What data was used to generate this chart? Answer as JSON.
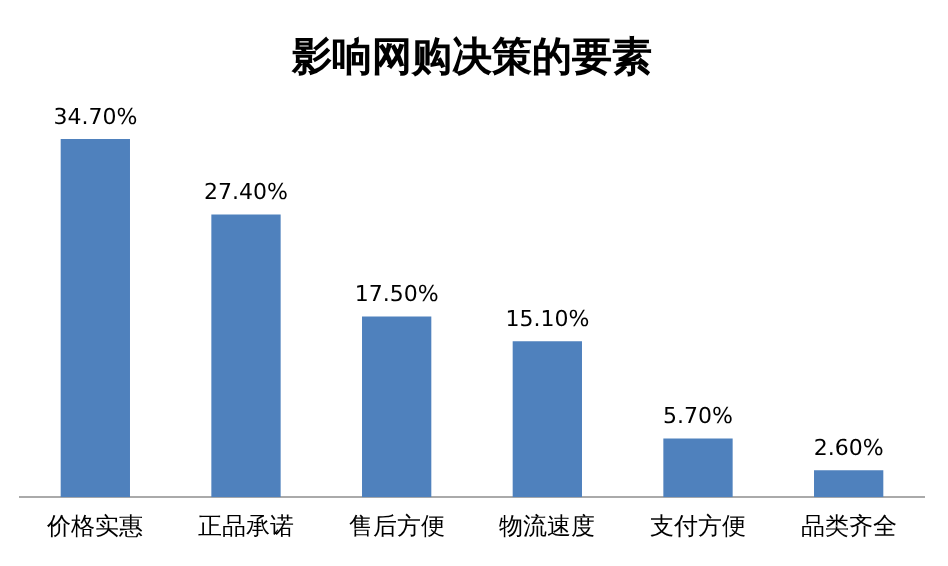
{
  "chart_data": {
    "type": "bar",
    "title": "影响网购决策的要素",
    "categories": [
      "价格实惠",
      "正品承诺",
      "售后方便",
      "物流速度",
      "支付方便",
      "品类齐全"
    ],
    "values": [
      34.7,
      27.4,
      17.5,
      15.1,
      5.7,
      2.6
    ],
    "value_labels": [
      "34.70%",
      "27.40%",
      "17.50%",
      "15.10%",
      "5.70%",
      "2.60%"
    ],
    "color": "#4f81bd",
    "grid": false,
    "legend": false
  }
}
